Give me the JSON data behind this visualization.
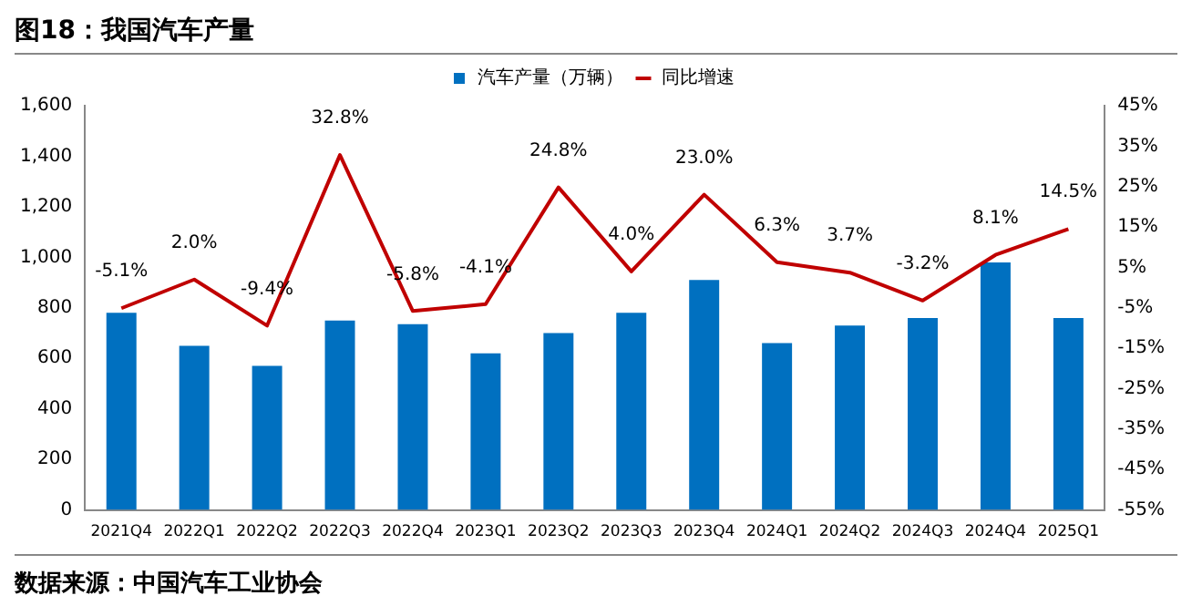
{
  "chart_data": {
    "type": "bar",
    "title": "图18：我国汽车产量",
    "categories": [
      "2021Q4",
      "2022Q1",
      "2022Q2",
      "2022Q3",
      "2022Q4",
      "2023Q1",
      "2023Q2",
      "2023Q3",
      "2023Q4",
      "2024Q1",
      "2024Q2",
      "2024Q3",
      "2024Q4",
      "2025Q1"
    ],
    "series": [
      {
        "name": "汽车产量（万辆）",
        "color": "#0070c0",
        "values": [
          780,
          650,
          570,
          750,
          735,
          620,
          700,
          780,
          910,
          660,
          730,
          760,
          980,
          760
        ]
      },
      {
        "name": "同比增速",
        "type": "line",
        "axis": "y2",
        "color": "#c00000",
        "marker": "none",
        "values": [
          -5.1,
          2.0,
          -9.4,
          32.8,
          -5.8,
          -4.1,
          24.8,
          4.0,
          23.0,
          6.3,
          3.7,
          -3.2,
          8.1,
          14.5
        ],
        "value_labels": [
          "-5.1%",
          "2.0%",
          "-9.4%",
          "32.8%",
          "-5.8%",
          "-4.1%",
          "24.8%",
          "4.0%",
          "23.0%",
          "6.3%",
          "3.7%",
          "-3.2%",
          "8.1%",
          "14.5%"
        ]
      }
    ],
    "ylim": [
      0,
      1600
    ],
    "yticks": [
      0,
      200,
      400,
      600,
      800,
      {
        "value": 1000,
        "label": "1,000"
      },
      {
        "value": 1200,
        "label": "1,200"
      },
      {
        "value": 1400,
        "label": "1,400"
      },
      {
        "value": 1600,
        "label": "1,600"
      }
    ],
    "y2lim": [
      -55,
      45
    ],
    "y2ticks": [
      {
        "value": -55,
        "label": "-55%"
      },
      {
        "value": -45,
        "label": "-45%"
      },
      {
        "value": -35,
        "label": "-35%"
      },
      {
        "value": -25,
        "label": "-25%"
      },
      {
        "value": -15,
        "label": "-15%"
      },
      {
        "value": -5,
        "label": "-5%"
      },
      {
        "value": 5,
        "label": "5%"
      },
      {
        "value": 15,
        "label": "15%"
      },
      {
        "value": 25,
        "label": "25%"
      },
      {
        "value": 35,
        "label": "35%"
      },
      {
        "value": 45,
        "label": "45%"
      }
    ],
    "grid": false,
    "legend": "top",
    "annotations": [
      "数据来源：中国汽车工业协会"
    ]
  }
}
